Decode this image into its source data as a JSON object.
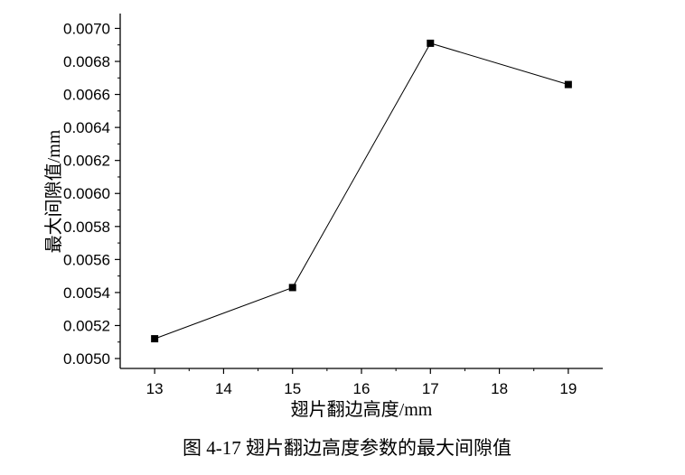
{
  "chart_data": {
    "type": "line",
    "title": "",
    "xlabel": "翅片翻边高度/mm",
    "ylabel": "最大间隙值/mm",
    "caption": "图 4-17 翅片翻边高度参数的最大间隙值",
    "x_ticks": [
      "13",
      "14",
      "15",
      "16",
      "17",
      "18",
      "19"
    ],
    "y_ticks": [
      "0.0050",
      "0.0052",
      "0.0054",
      "0.0056",
      "0.0058",
      "0.0060",
      "0.0062",
      "0.0064",
      "0.0066",
      "0.0068",
      "0.0070"
    ],
    "xlim": [
      12.5,
      19.5
    ],
    "ylim": [
      0.00494,
      0.00709
    ],
    "grid": false,
    "series": [
      {
        "marker": "square",
        "color": "#000000",
        "points": [
          {
            "x": 13,
            "y": 0.00512
          },
          {
            "x": 15,
            "y": 0.00543
          },
          {
            "x": 17,
            "y": 0.00691
          },
          {
            "x": 19,
            "y": 0.00666
          }
        ]
      }
    ]
  }
}
